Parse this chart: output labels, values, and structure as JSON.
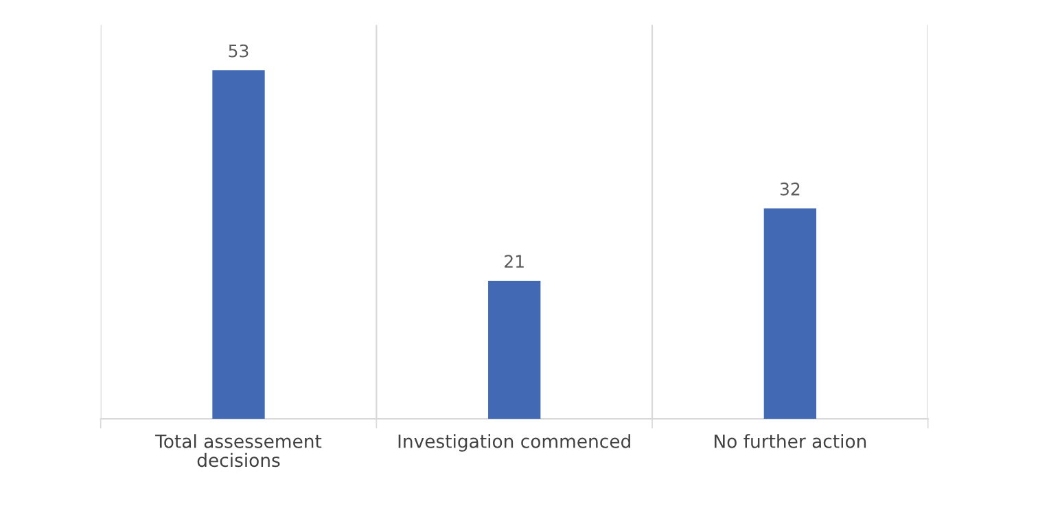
{
  "chart_data": {
    "type": "bar",
    "categories": [
      "Total assessement decisions",
      "Investigation commenced",
      "No further action"
    ],
    "values": [
      53,
      21,
      32
    ],
    "color": "#4169b4",
    "data_labels": true,
    "grid": "x"
  }
}
